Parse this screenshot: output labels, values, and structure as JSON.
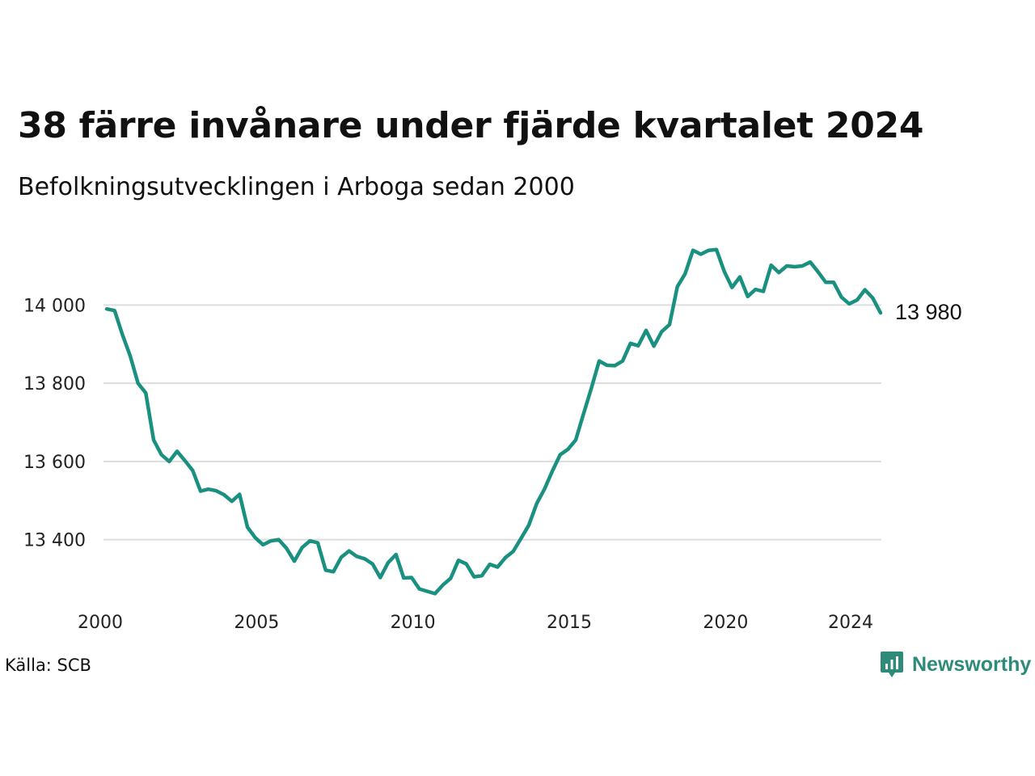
{
  "header": {
    "title": "38 färre invånare under fjärde kvartalet 2024",
    "subtitle": "Befolkningsutvecklingen i Arboga sedan 2000"
  },
  "footer": {
    "source": "Källa: SCB",
    "logo_text": "Newsworthy"
  },
  "colors": {
    "line": "#1a9080",
    "grid": "#dddddd",
    "logo": "#2e8b7a"
  },
  "chart_data": {
    "type": "line",
    "title": "38 färre invånare under fjärde kvartalet 2024",
    "subtitle": "Befolkningsutvecklingen i Arboga sedan 2000",
    "xlabel": "",
    "ylabel": "",
    "x_tick_labels": [
      "2000",
      "2005",
      "2010",
      "2015",
      "2020",
      "2024"
    ],
    "x_ticks": [
      2000,
      2005,
      2010,
      2015,
      2020,
      2024
    ],
    "y_tick_labels": [
      "13 400",
      "13 600",
      "13 800",
      "14 000"
    ],
    "y_ticks": [
      13400,
      13600,
      13800,
      14000
    ],
    "ylim": [
      13240,
      14160
    ],
    "xlim": [
      2000,
      2024.75
    ],
    "grid": true,
    "end_label": "13 980",
    "series": [
      {
        "x": [
          2000,
          2000.25,
          2000.5,
          2000.75,
          2001,
          2001.25,
          2001.5,
          2001.75,
          2002,
          2002.25,
          2002.5,
          2002.75,
          2003,
          2003.25,
          2003.5,
          2003.75,
          2004,
          2004.25,
          2004.5,
          2004.75,
          2005,
          2005.25,
          2005.5,
          2005.75,
          2006,
          2006.25,
          2006.5,
          2006.75,
          2007,
          2007.25,
          2007.5,
          2007.75,
          2008,
          2008.25,
          2008.5,
          2008.75,
          2009,
          2009.25,
          2009.5,
          2009.75,
          2010,
          2010.25,
          2010.5,
          2010.75,
          2011,
          2011.25,
          2011.5,
          2011.75,
          2012,
          2012.25,
          2012.5,
          2012.75,
          2013,
          2013.25,
          2013.5,
          2013.75,
          2014,
          2014.25,
          2014.5,
          2014.75,
          2015,
          2015.25,
          2015.5,
          2015.75,
          2016,
          2016.25,
          2016.5,
          2016.75,
          2017,
          2017.25,
          2017.5,
          2017.75,
          2018,
          2018.25,
          2018.5,
          2018.75,
          2019,
          2019.25,
          2019.5,
          2019.75,
          2020,
          2020.25,
          2020.5,
          2020.75,
          2021,
          2021.25,
          2021.5,
          2021.75,
          2022,
          2022.25,
          2022.5,
          2022.75,
          2023,
          2023.25,
          2023.5,
          2023.75,
          2024,
          2024.25,
          2024.5,
          2024.75
        ],
        "values": [
          13990,
          13986,
          13925,
          13870,
          13800,
          13775,
          13655,
          13617,
          13600,
          13626,
          13602,
          13577,
          13524,
          13529,
          13525,
          13515,
          13498,
          13516,
          13432,
          13405,
          13387,
          13397,
          13400,
          13378,
          13345,
          13380,
          13397,
          13392,
          13322,
          13318,
          13355,
          13371,
          13357,
          13351,
          13338,
          13303,
          13341,
          13362,
          13302,
          13303,
          13274,
          13268,
          13262,
          13284,
          13301,
          13347,
          13338,
          13305,
          13308,
          13337,
          13330,
          13354,
          13370,
          13403,
          13437,
          13492,
          13529,
          13575,
          13617,
          13631,
          13655,
          13722,
          13787,
          13857,
          13846,
          13845,
          13857,
          13902,
          13896,
          13935,
          13895,
          13932,
          13950,
          14047,
          14080,
          14140,
          14130,
          14140,
          14142,
          14086,
          14045,
          14072,
          14022,
          14040,
          14035,
          14102,
          14083,
          14100,
          14098,
          14100,
          14110,
          14085,
          14058,
          14058,
          14020,
          14003,
          14013,
          14039,
          14018,
          13980
        ]
      }
    ]
  }
}
